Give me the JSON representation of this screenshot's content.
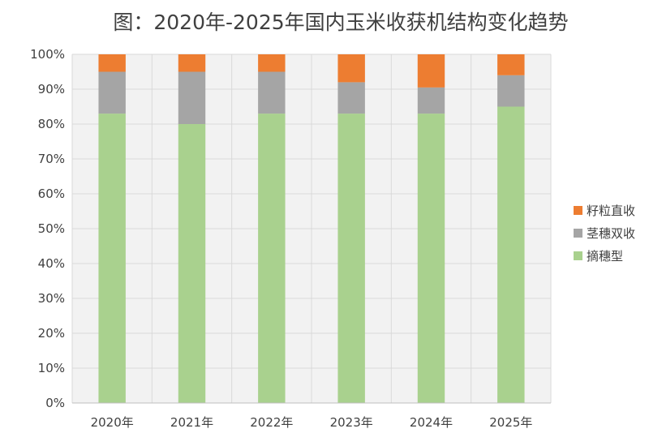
{
  "chart_data": {
    "type": "bar",
    "stacked": true,
    "title": "图：2020年-2025年国内玉米收获机结构变化趋势",
    "xlabel": "",
    "ylabel": "",
    "categories": [
      "2020年",
      "2021年",
      "2022年",
      "2023年",
      "2024年",
      "2025年"
    ],
    "ylim": [
      0,
      100
    ],
    "y_unit": "%",
    "y_ticks": [
      0,
      10,
      20,
      30,
      40,
      50,
      60,
      70,
      80,
      90,
      100
    ],
    "y_tick_labels": [
      "0%",
      "10%",
      "20%",
      "30%",
      "40%",
      "50%",
      "60%",
      "70%",
      "80%",
      "90%",
      "100%"
    ],
    "grid": true,
    "legend_position": "right",
    "series": [
      {
        "name": "摘穗型",
        "color": "#A9D18E",
        "values": [
          83,
          80,
          83,
          83,
          83,
          85
        ]
      },
      {
        "name": "茎穗双收",
        "color": "#A5A5A5",
        "values": [
          12,
          15,
          12,
          9,
          7.5,
          9
        ]
      },
      {
        "name": "籽粒直收",
        "color": "#ED7D31",
        "values": [
          5,
          5,
          5,
          8,
          9.5,
          6
        ]
      }
    ],
    "legend_order": [
      "籽粒直收",
      "茎穗双收",
      "摘穗型"
    ]
  }
}
